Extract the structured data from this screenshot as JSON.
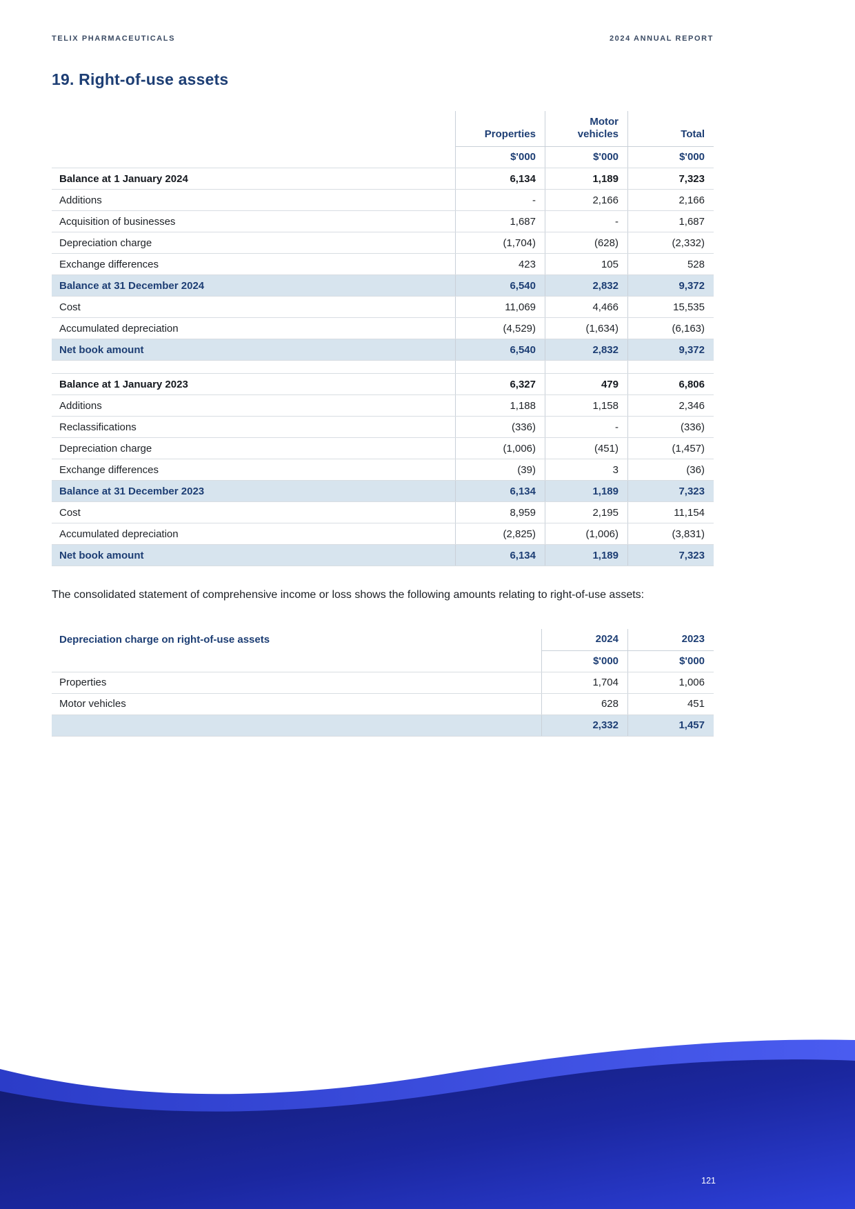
{
  "page": {
    "header_left": "TELIX PHARMACEUTICALS",
    "header_right": "2024 ANNUAL REPORT",
    "section_title": "19. Right-of-use assets",
    "paragraph": "The consolidated statement of comprehensive income or loss shows the following amounts relating to right-of-use assets:",
    "page_number": "121"
  },
  "colors": {
    "navy": "#1d3e74",
    "highlight_row": "#d7e4ee",
    "wave_dark": "#121a6a",
    "wave_bright": "#3447e0"
  },
  "table1": {
    "columns": [
      "Properties",
      "Motor vehicles",
      "Total"
    ],
    "unit": "$'000",
    "rows": [
      {
        "label": "Balance at 1 January 2024",
        "values": [
          "6,134",
          "1,189",
          "7,323"
        ],
        "style": "bold"
      },
      {
        "label": "Additions",
        "values": [
          "-",
          "2,166",
          "2,166"
        ],
        "style": "normal"
      },
      {
        "label": "Acquisition of businesses",
        "values": [
          "1,687",
          "-",
          "1,687"
        ],
        "style": "normal"
      },
      {
        "label": "Depreciation charge",
        "values": [
          "(1,704)",
          "(628)",
          "(2,332)"
        ],
        "style": "normal"
      },
      {
        "label": "Exchange differences",
        "values": [
          "423",
          "105",
          "528"
        ],
        "style": "normal"
      },
      {
        "label": "Balance at 31 December 2024",
        "values": [
          "6,540",
          "2,832",
          "9,372"
        ],
        "style": "highlight"
      },
      {
        "label": "Cost",
        "values": [
          "11,069",
          "4,466",
          "15,535"
        ],
        "style": "normal"
      },
      {
        "label": "Accumulated depreciation",
        "values": [
          "(4,529)",
          "(1,634)",
          "(6,163)"
        ],
        "style": "normal"
      },
      {
        "label": "Net book amount",
        "values": [
          "6,540",
          "2,832",
          "9,372"
        ],
        "style": "highlight"
      },
      {
        "label": "",
        "values": [
          "",
          "",
          ""
        ],
        "style": "spacer"
      },
      {
        "label": "Balance at 1 January 2023",
        "values": [
          "6,327",
          "479",
          "6,806"
        ],
        "style": "bold"
      },
      {
        "label": "Additions",
        "values": [
          "1,188",
          "1,158",
          "2,346"
        ],
        "style": "normal"
      },
      {
        "label": "Reclassifications",
        "values": [
          "(336)",
          "-",
          "(336)"
        ],
        "style": "normal"
      },
      {
        "label": "Depreciation charge",
        "values": [
          "(1,006)",
          "(451)",
          "(1,457)"
        ],
        "style": "normal"
      },
      {
        "label": "Exchange differences",
        "values": [
          "(39)",
          "3",
          "(36)"
        ],
        "style": "normal"
      },
      {
        "label": "Balance at 31 December 2023",
        "values": [
          "6,134",
          "1,189",
          "7,323"
        ],
        "style": "highlight"
      },
      {
        "label": "Cost",
        "values": [
          "8,959",
          "2,195",
          "11,154"
        ],
        "style": "normal"
      },
      {
        "label": "Accumulated depreciation",
        "values": [
          "(2,825)",
          "(1,006)",
          "(3,831)"
        ],
        "style": "normal"
      },
      {
        "label": "Net book amount",
        "values": [
          "6,134",
          "1,189",
          "7,323"
        ],
        "style": "highlight"
      }
    ]
  },
  "table2": {
    "title": "Depreciation charge on right-of-use assets",
    "columns": [
      "2024",
      "2023"
    ],
    "unit": "$'000",
    "rows": [
      {
        "label": "Properties",
        "values": [
          "1,704",
          "1,006"
        ],
        "style": "normal"
      },
      {
        "label": "Motor vehicles",
        "values": [
          "628",
          "451"
        ],
        "style": "normal"
      },
      {
        "label": "",
        "values": [
          "2,332",
          "1,457"
        ],
        "style": "highlight"
      }
    ]
  }
}
